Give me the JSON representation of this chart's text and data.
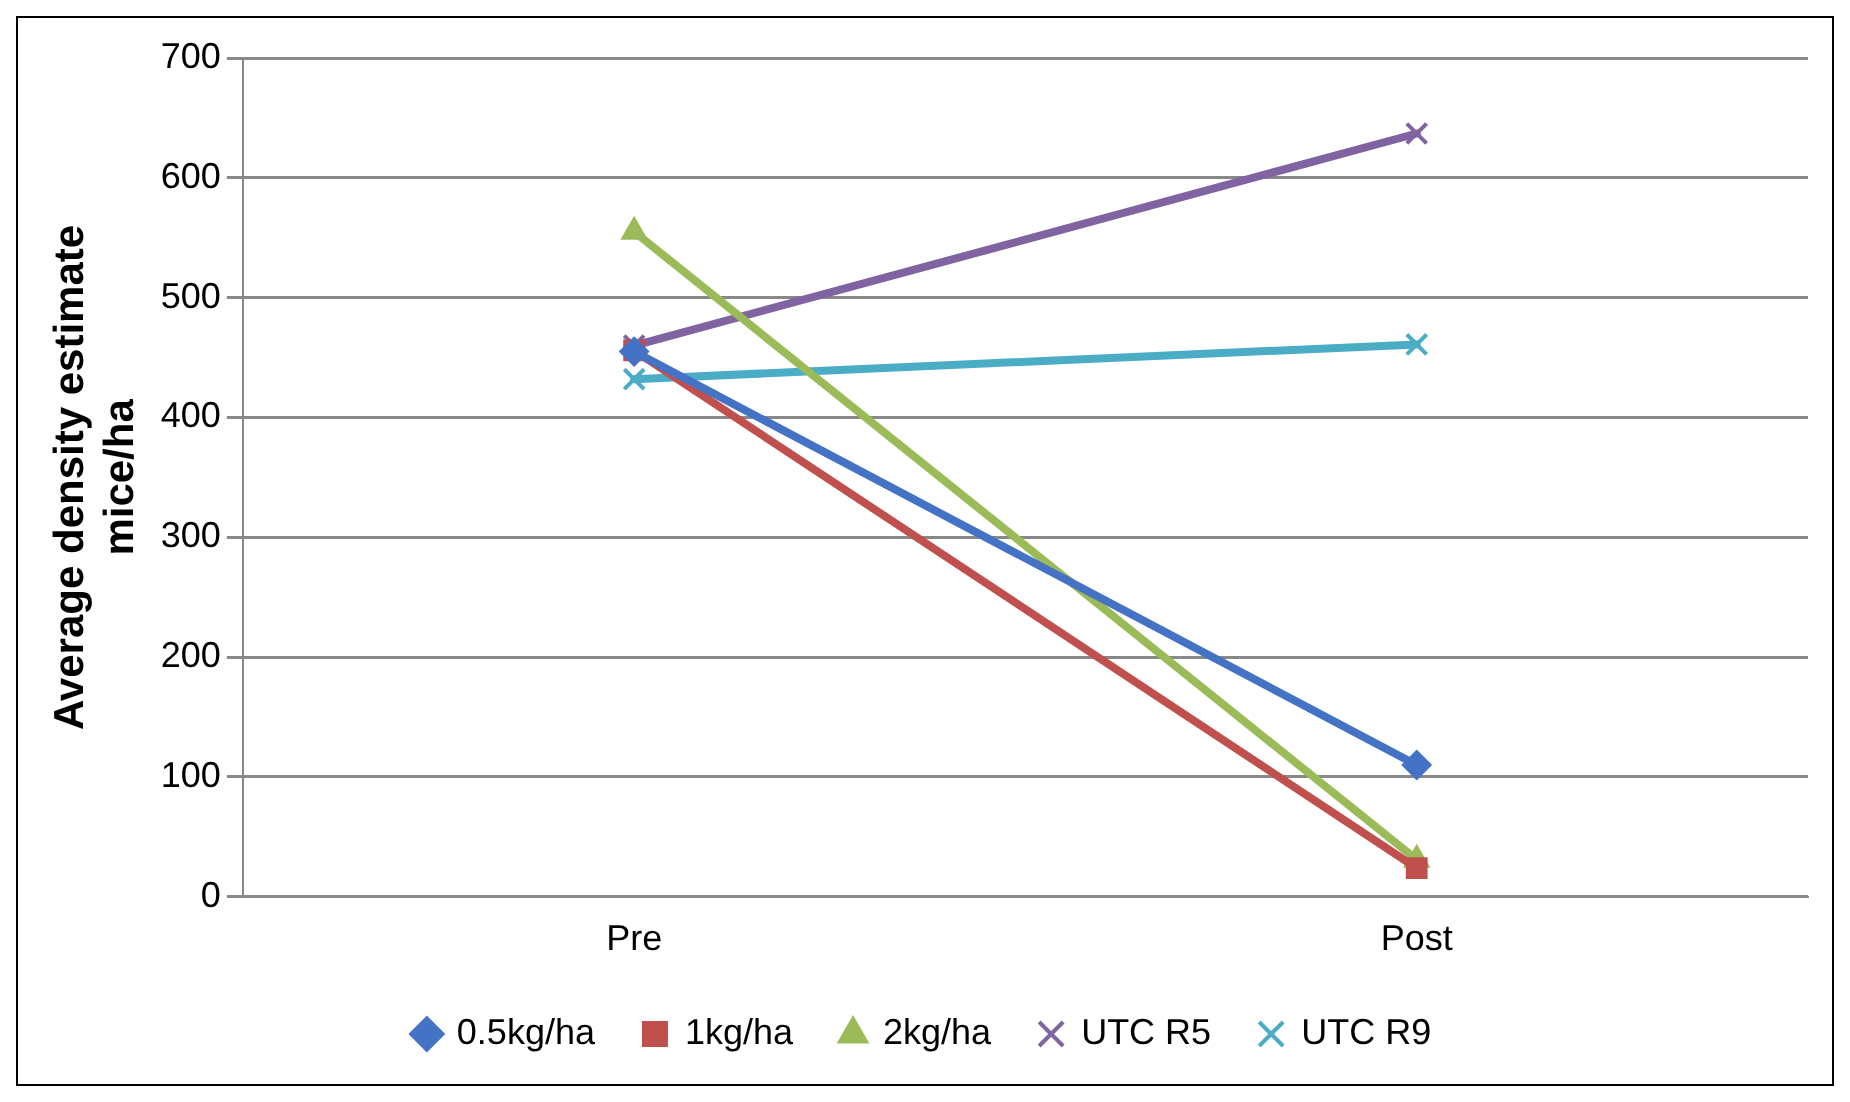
{
  "chart_data": {
    "type": "line",
    "ylabel": "Average density estimate\nmice/ha",
    "categories": [
      "Pre",
      "Post"
    ],
    "series": [
      {
        "name": "0.5kg/ha",
        "color": "#4472c4",
        "values": [
          455,
          110
        ],
        "marker": "diamond"
      },
      {
        "name": "1kg/ha",
        "color": "#c0504d",
        "values": [
          456,
          24
        ],
        "marker": "square"
      },
      {
        "name": "2kg/ha",
        "color": "#9bbb59",
        "values": [
          555,
          31
        ],
        "marker": "triangle"
      },
      {
        "name": "UTC R5",
        "color": "#8064a2",
        "values": [
          460,
          637
        ],
        "marker": "cross"
      },
      {
        "name": "UTC R9",
        "color": "#4bacc6",
        "values": [
          432,
          461
        ],
        "marker": "cross"
      }
    ],
    "ylim": [
      0,
      700
    ],
    "yticks": [
      0,
      100,
      200,
      300,
      400,
      500,
      600,
      700
    ],
    "grid": "y",
    "legend": "bottom"
  }
}
